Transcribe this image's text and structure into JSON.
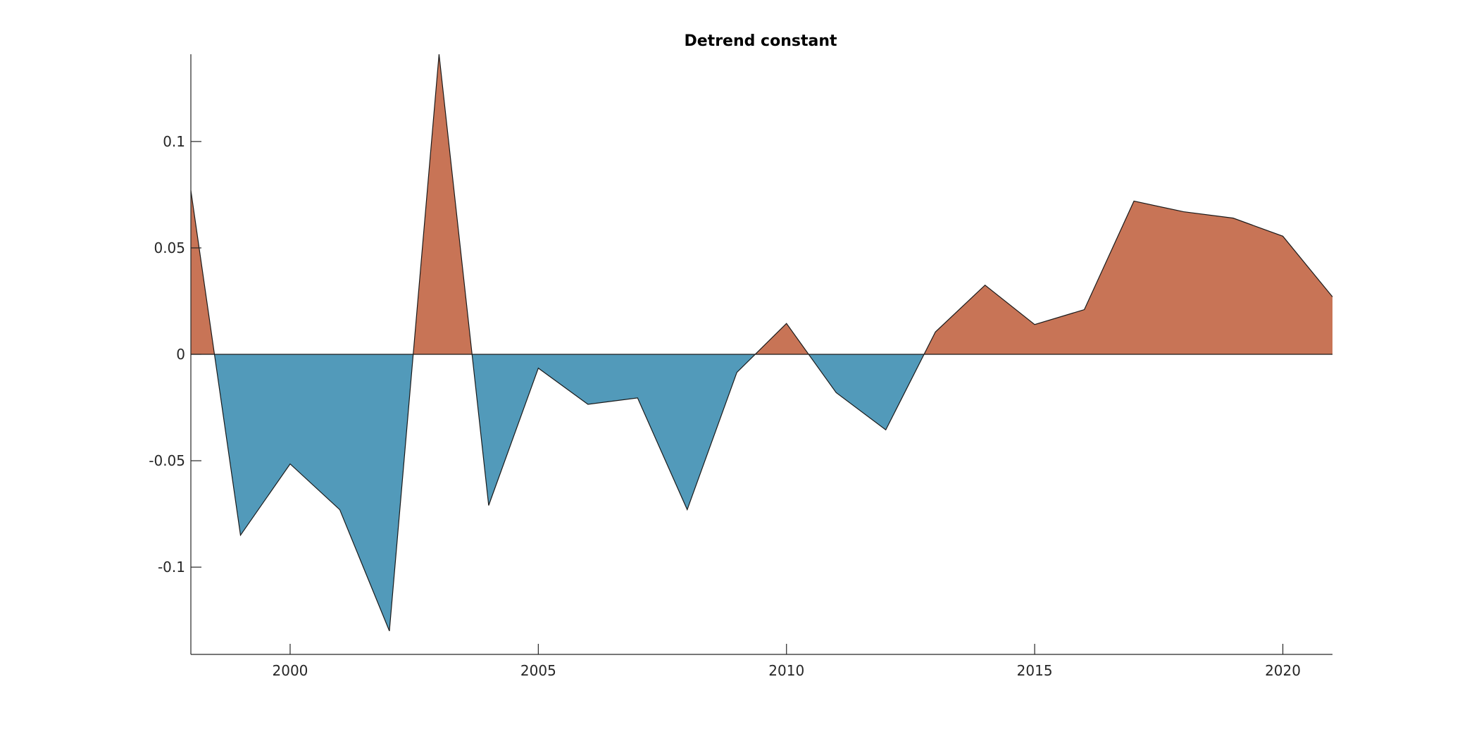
{
  "chart_data": {
    "type": "area",
    "title": "Detrend constant",
    "xlabel": "",
    "ylabel": "",
    "x": [
      1998,
      1999,
      2000,
      2001,
      2002,
      2003,
      2004,
      2005,
      2006,
      2007,
      2008,
      2009,
      2010,
      2011,
      2012,
      2013,
      2014,
      2015,
      2016,
      2017,
      2018,
      2019,
      2020,
      2021
    ],
    "values": [
      0.077,
      -0.085,
      -0.0515,
      -0.073,
      -0.13,
      0.141,
      -0.071,
      -0.0065,
      -0.0235,
      -0.0205,
      -0.073,
      -0.0085,
      0.0145,
      -0.018,
      -0.0355,
      0.0105,
      0.0325,
      0.014,
      0.021,
      0.072,
      0.067,
      0.064,
      0.0555,
      0.027
    ],
    "xlim": [
      1998,
      2021
    ],
    "ylim": [
      -0.141,
      0.141
    ],
    "x_ticks": [
      2000,
      2005,
      2010,
      2015,
      2020
    ],
    "x_tick_labels": [
      "2000",
      "2005",
      "2010",
      "2015",
      "2020"
    ],
    "y_ticks": [
      -0.1,
      -0.05,
      0,
      0.05,
      0.1
    ],
    "y_tick_labels": [
      "-0.1",
      "-0.05",
      "0",
      "0.05",
      "0.1"
    ],
    "positive_color": "#c87456",
    "negative_color": "#529aba",
    "grid": false,
    "legend": "none"
  }
}
